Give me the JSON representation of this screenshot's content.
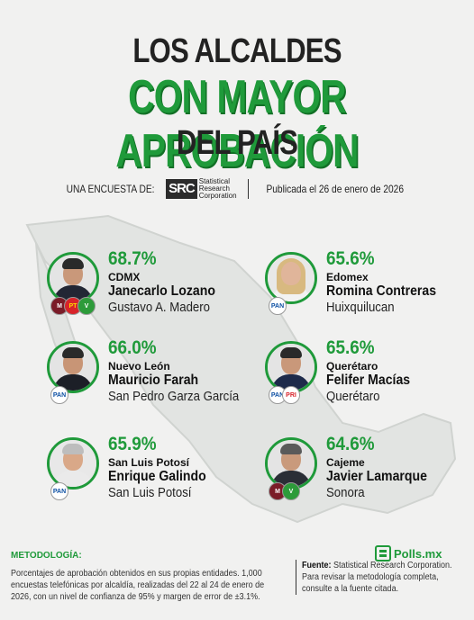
{
  "header": {
    "line1": "LOS ALCALDES",
    "line2": "CON MAYOR APROBACIÓN",
    "line3": "DEL PAÍS"
  },
  "survey": {
    "prefix": "UNA ENCUESTA DE:",
    "logo_short": "SRC",
    "logo_line1": "Statistical",
    "logo_line2": "Research",
    "logo_line3": "Corporation",
    "published": "Publicada el 26 de enero de 2026"
  },
  "mayors": [
    {
      "pct": "68.7%",
      "state": "CDMX",
      "name": "Janecarlo Lozano",
      "municipality": "Gustavo A. Madero",
      "party": "morena-pt-pvem"
    },
    {
      "pct": "65.6%",
      "state": "Edomex",
      "name": "Romina Contreras",
      "municipality": "Huixquilucan",
      "party": "pan"
    },
    {
      "pct": "66.0%",
      "state": "Nuevo León",
      "name": "Mauricio Farah",
      "municipality": "San Pedro Garza García",
      "party": "pan"
    },
    {
      "pct": "65.6%",
      "state": "Querétaro",
      "name": "Felifer Macías",
      "municipality": "Querétaro",
      "party": "pan-pri"
    },
    {
      "pct": "65.9%",
      "state": "San Luis Potosí",
      "name": "Enrique Galindo",
      "municipality": "San Luis Potosí",
      "party": "pan"
    },
    {
      "pct": "64.6%",
      "state": "Cajeme",
      "name": "Javier Lamarque",
      "municipality": "Sonora",
      "party": "morena-pvem"
    }
  ],
  "badges": {
    "pan": "PAN",
    "pt": "PT",
    "pri": "PRI",
    "morena": "M",
    "pvem": "V"
  },
  "methodology": {
    "heading": "METODOLOGÍA:",
    "text": "Porcentajes de aprobación obtenidos en sus propias entidades. 1,000 encuestas telefónicas por alcaldía, realizadas del 22 al 24 de enero de 2026, con un nivel de confianza de 95% y margen de error de ±3.1%."
  },
  "source": {
    "label": "Fuente:",
    "text": "Statistical Research Corporation. Para revisar la metodología completa, consulte a la fuente citada."
  },
  "brand": {
    "name": "Polls.mx"
  },
  "colors": {
    "accent": "#1f9a3a",
    "background": "#f1f1f0"
  }
}
